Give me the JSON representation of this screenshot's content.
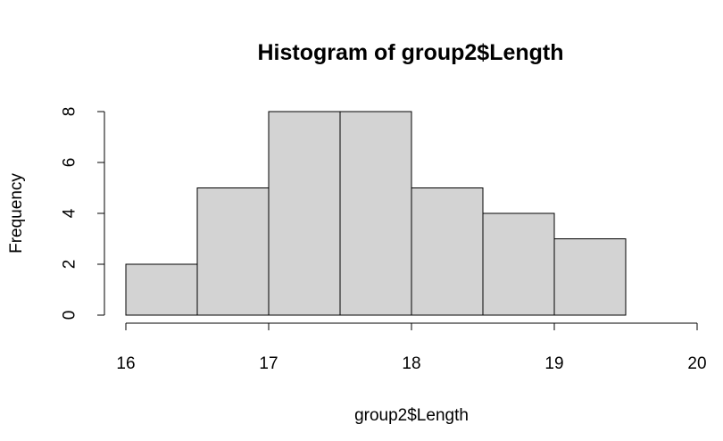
{
  "chart_data": {
    "type": "bar",
    "subtype": "histogram",
    "title": "Histogram of group2$Length",
    "xlabel": "group2$Length",
    "ylabel": "Frequency",
    "bins": [
      {
        "start": 16.0,
        "end": 16.5,
        "count": 2
      },
      {
        "start": 16.5,
        "end": 17.0,
        "count": 5
      },
      {
        "start": 17.0,
        "end": 17.5,
        "count": 8
      },
      {
        "start": 17.5,
        "end": 18.0,
        "count": 8
      },
      {
        "start": 18.0,
        "end": 18.5,
        "count": 5
      },
      {
        "start": 18.5,
        "end": 19.0,
        "count": 4
      },
      {
        "start": 19.0,
        "end": 19.5,
        "count": 3
      }
    ],
    "xlim": [
      16,
      20
    ],
    "ylim": [
      0,
      8
    ],
    "x_ticks": [
      16,
      17,
      18,
      19,
      20
    ],
    "y_ticks": [
      0,
      2,
      4,
      6,
      8
    ],
    "bar_color": "#d3d3d3",
    "grid": false,
    "legend": "none"
  }
}
